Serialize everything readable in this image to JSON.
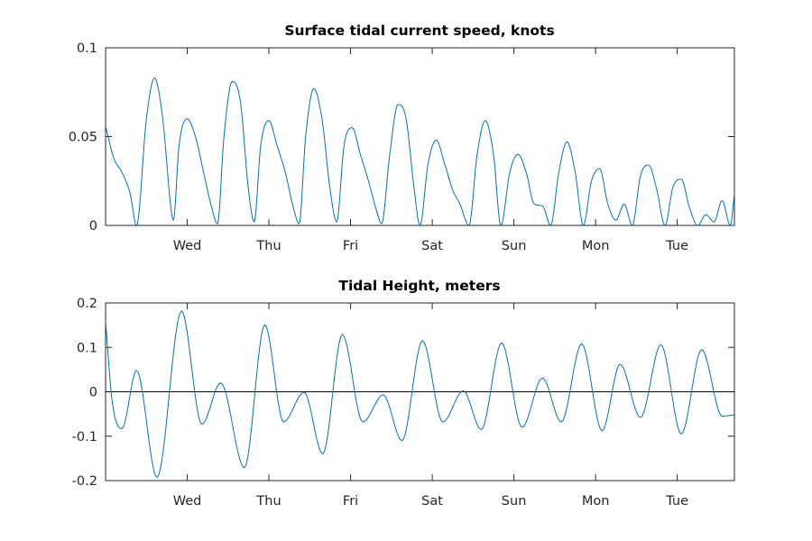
{
  "chart_data": [
    {
      "type": "line",
      "title": "Surface tidal current speed, knots",
      "xlabel": "",
      "ylabel": "",
      "x_unit": "day",
      "xlim": [
        0,
        7.7
      ],
      "ylim": [
        0,
        0.1
      ],
      "yticks": [
        0,
        0.05,
        0.1
      ],
      "ytick_labels": [
        "0",
        "0.05",
        "0.1"
      ],
      "xticks": [
        1,
        2,
        3,
        4,
        5,
        6,
        7
      ],
      "xtick_labels": [
        "Wed",
        "Thu",
        "Fri",
        "Sat",
        "Sun",
        "Mon",
        "Tue"
      ],
      "grid": false,
      "color": "#0072BD",
      "series": [
        {
          "x": [
            0,
            0.1,
            0.2,
            0.3,
            0.38,
            0.5,
            0.6,
            0.7,
            0.8,
            0.83,
            0.9,
            1.0,
            1.1,
            1.2,
            1.3,
            1.37,
            1.45,
            1.55,
            1.65,
            1.75,
            1.82,
            1.9,
            2.0,
            2.1,
            2.2,
            2.3,
            2.37,
            2.45,
            2.55,
            2.65,
            2.75,
            2.83,
            2.92,
            3.02,
            3.12,
            3.22,
            3.32,
            3.38,
            3.48,
            3.58,
            3.68,
            3.78,
            3.85,
            3.95,
            4.05,
            4.15,
            4.25,
            4.34,
            4.45,
            4.55,
            4.65,
            4.75,
            4.84,
            4.95,
            5.05,
            5.15,
            5.25,
            5.35,
            5.45,
            5.55,
            5.65,
            5.75,
            5.85,
            5.95,
            6.05,
            6.15,
            6.25,
            6.35,
            6.45,
            6.55,
            6.65,
            6.75,
            6.85,
            6.95,
            7.05,
            7.15,
            7.25,
            7.35,
            7.45,
            7.55,
            7.65,
            7.7
          ],
          "y": [
            0.056,
            0.038,
            0.03,
            0.018,
            0.0,
            0.06,
            0.083,
            0.06,
            0.01,
            0.003,
            0.045,
            0.06,
            0.05,
            0.03,
            0.01,
            0.001,
            0.05,
            0.081,
            0.07,
            0.02,
            0.002,
            0.045,
            0.059,
            0.045,
            0.03,
            0.01,
            0.001,
            0.05,
            0.077,
            0.06,
            0.02,
            0.002,
            0.045,
            0.055,
            0.04,
            0.025,
            0.008,
            0.001,
            0.04,
            0.068,
            0.06,
            0.02,
            0.0,
            0.035,
            0.048,
            0.035,
            0.02,
            0.012,
            0.0,
            0.04,
            0.059,
            0.04,
            0.0,
            0.03,
            0.04,
            0.03,
            0.012,
            0.011,
            0.0,
            0.03,
            0.047,
            0.03,
            0.0,
            0.025,
            0.032,
            0.012,
            0.003,
            0.012,
            0.0,
            0.028,
            0.034,
            0.02,
            0.0,
            0.022,
            0.026,
            0.01,
            0.0,
            0.006,
            0.002,
            0.014,
            0.0,
            0.018
          ]
        }
      ]
    },
    {
      "type": "line",
      "title": "Tidal Height, meters",
      "xlabel": "",
      "ylabel": "",
      "x_unit": "day",
      "xlim": [
        0,
        7.7
      ],
      "ylim": [
        -0.2,
        0.2
      ],
      "yticks": [
        -0.2,
        -0.1,
        0,
        0.1,
        0.2
      ],
      "ytick_labels": [
        "-0.2",
        "-0.1",
        "0",
        "0.1",
        "0.2"
      ],
      "xticks": [
        1,
        2,
        3,
        4,
        5,
        6,
        7
      ],
      "xtick_labels": [
        "Wed",
        "Thu",
        "Fri",
        "Sat",
        "Sun",
        "Mon",
        "Tue"
      ],
      "grid": false,
      "zero_line": true,
      "color": "#0072BD",
      "series": [
        {
          "x": [
            0,
            0.08,
            0.2,
            0.38,
            0.63,
            0.93,
            1.18,
            1.41,
            1.7,
            1.95,
            2.18,
            2.43,
            2.66,
            2.9,
            3.15,
            3.4,
            3.63,
            3.88,
            4.13,
            4.38,
            4.6,
            4.85,
            5.1,
            5.35,
            5.58,
            5.83,
            6.08,
            6.3,
            6.55,
            6.8,
            7.05,
            7.3,
            7.55,
            7.7
          ],
          "y": [
            0.16,
            -0.02,
            -0.083,
            0.048,
            -0.193,
            0.182,
            -0.073,
            0.02,
            -0.171,
            0.151,
            -0.068,
            -0.001,
            -0.14,
            0.129,
            -0.068,
            -0.007,
            -0.11,
            0.115,
            -0.068,
            0.002,
            -0.085,
            0.11,
            -0.08,
            0.031,
            -0.068,
            0.108,
            -0.088,
            0.062,
            -0.058,
            0.106,
            -0.095,
            0.095,
            -0.055,
            -0.052
          ]
        }
      ]
    }
  ]
}
